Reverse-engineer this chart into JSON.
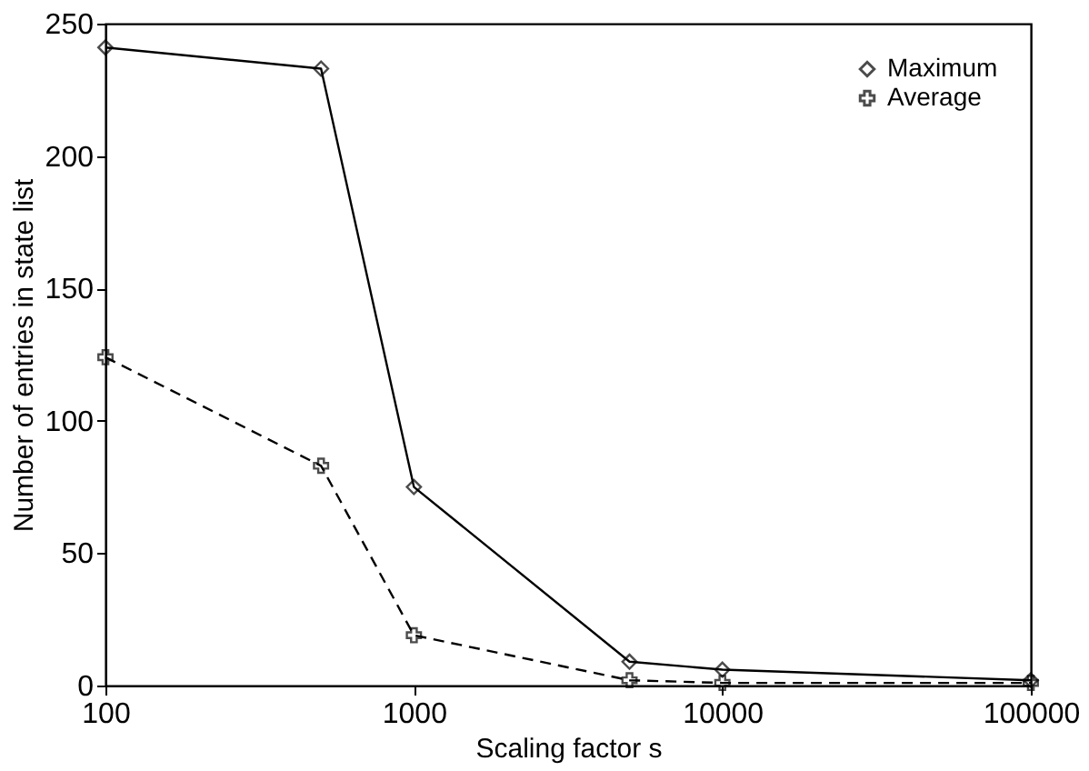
{
  "chart_data": {
    "type": "line",
    "xlabel": "Scaling factor s",
    "ylabel": "Number of entries in state list",
    "log": "x",
    "xlim": [
      100,
      100000
    ],
    "xticks": [
      100,
      1000,
      10000,
      100000
    ],
    "ylim": [
      0,
      250
    ],
    "yticks": [
      0,
      50,
      100,
      150,
      200,
      250
    ],
    "grid": false,
    "legend": "top right",
    "series": [
      {
        "name": "Maximum",
        "color": "#000000",
        "marker": "diamond",
        "line_style": "solid",
        "x": [
          100,
          500,
          1000,
          5000,
          10000,
          100000
        ],
        "values": [
          241,
          233,
          75,
          9,
          6,
          2
        ]
      },
      {
        "name": "Average",
        "color": "#000000",
        "marker": "cross",
        "line_style": "dashed",
        "x": [
          100,
          500,
          1000,
          5000,
          10000,
          100000
        ],
        "values": [
          124,
          83,
          19,
          2,
          1,
          1
        ]
      }
    ]
  }
}
